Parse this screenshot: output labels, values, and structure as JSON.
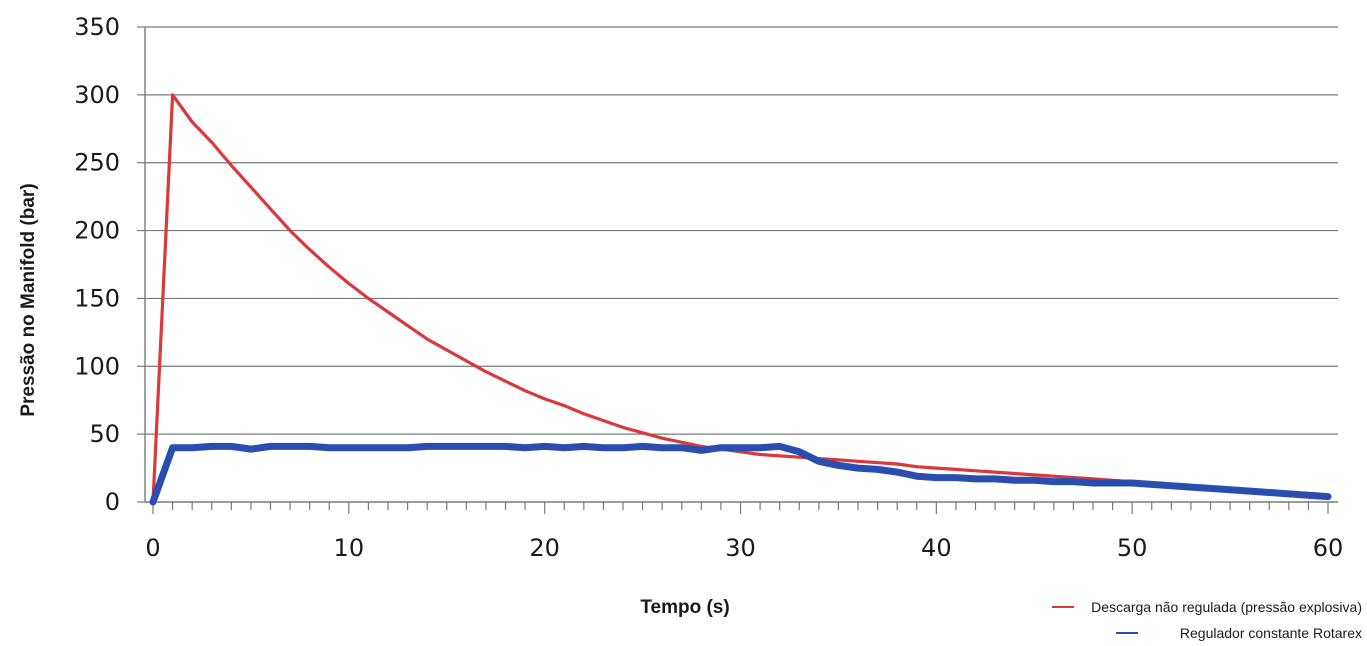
{
  "chart_data": {
    "type": "line",
    "xlabel": "Tempo (s)",
    "ylabel": "Pressão no Manifold (bar)",
    "xlim": [
      0,
      60
    ],
    "ylim": [
      0,
      350
    ],
    "xticks": [
      0,
      10,
      20,
      30,
      40,
      50,
      60
    ],
    "yticks": [
      0,
      50,
      100,
      150,
      200,
      250,
      300,
      350
    ],
    "grid": "horizontal",
    "legend_position": "bottom-right",
    "series": [
      {
        "name": "Descarga não regulada (pressão explosiva)",
        "color": "#d9393b",
        "x": [
          0,
          1,
          2,
          3,
          4,
          5,
          6,
          7,
          8,
          9,
          10,
          11,
          12,
          13,
          14,
          15,
          16,
          17,
          18,
          19,
          20,
          21,
          22,
          23,
          24,
          25,
          26,
          27,
          28,
          29,
          30,
          31,
          32,
          33,
          34,
          35,
          36,
          37,
          38,
          39,
          40,
          41,
          42,
          43,
          44,
          45,
          46,
          47,
          48,
          49,
          50,
          51,
          52,
          53,
          54,
          55,
          56,
          57,
          58,
          59,
          60
        ],
        "y": [
          0,
          300,
          280,
          265,
          248,
          232,
          216,
          200,
          186,
          173,
          161,
          150,
          140,
          130,
          120,
          112,
          104,
          96,
          89,
          82,
          76,
          71,
          65,
          60,
          55,
          51,
          47,
          44,
          41,
          39,
          37,
          35,
          34,
          33,
          32,
          31,
          30,
          29,
          28,
          26,
          25,
          24,
          23,
          22,
          21,
          20,
          19,
          18,
          17,
          16,
          15,
          14,
          13,
          12,
          11,
          10,
          9,
          8,
          7,
          6,
          5
        ]
      },
      {
        "name": "Regulador constante Rotarex",
        "color": "#2a4db0",
        "x": [
          0,
          1,
          2,
          3,
          4,
          5,
          6,
          7,
          8,
          9,
          10,
          11,
          12,
          13,
          14,
          15,
          16,
          17,
          18,
          19,
          20,
          21,
          22,
          23,
          24,
          25,
          26,
          27,
          28,
          29,
          30,
          31,
          32,
          33,
          34,
          35,
          36,
          37,
          38,
          39,
          40,
          41,
          42,
          43,
          44,
          45,
          46,
          47,
          48,
          49,
          50,
          51,
          52,
          53,
          54,
          55,
          56,
          57,
          58,
          59,
          60
        ],
        "y": [
          0,
          40,
          40,
          41,
          41,
          39,
          41,
          41,
          41,
          40,
          40,
          40,
          40,
          40,
          41,
          41,
          41,
          41,
          41,
          40,
          41,
          40,
          41,
          40,
          40,
          41,
          40,
          40,
          38,
          40,
          40,
          40,
          41,
          37,
          30,
          27,
          25,
          24,
          22,
          19,
          18,
          18,
          17,
          17,
          16,
          16,
          15,
          15,
          14,
          14,
          14,
          13,
          12,
          11,
          10,
          9,
          8,
          7,
          6,
          5,
          4
        ]
      }
    ]
  }
}
